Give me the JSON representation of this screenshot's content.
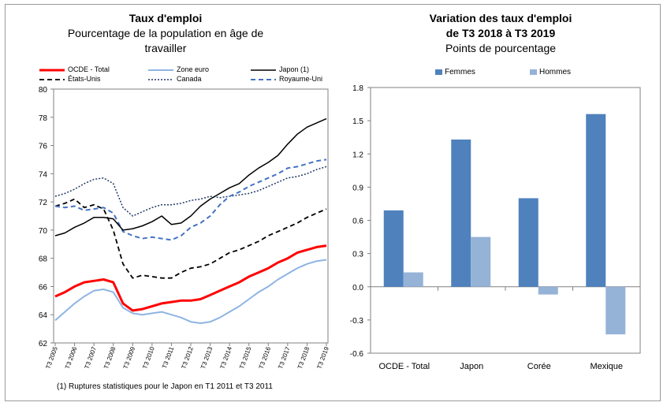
{
  "left_chart": {
    "title": "Taux d'emploi",
    "subtitle_line1": "Pourcentage de la population en âge de",
    "subtitle_line2": "travailler",
    "footnote": "(1) Ruptures statistiques pour le Japon en T1 2011  et T3 2011",
    "legend": [
      {
        "label": "OCDE - Total",
        "color": "#ff0000",
        "style": "solid-thick"
      },
      {
        "label": "Zone euro",
        "color": "#8eb4e3",
        "style": "solid"
      },
      {
        "label": "Japon (1)",
        "color": "#000000",
        "style": "solid"
      },
      {
        "label": "États-Unis",
        "color": "#000000",
        "style": "dashed"
      },
      {
        "label": "Canada",
        "color": "#1f3864",
        "style": "dotted"
      },
      {
        "label": "Royaume-Uni",
        "color": "#4472c4",
        "style": "dashed"
      }
    ]
  },
  "right_chart": {
    "title_line1": "Variation des taux d'emploi",
    "title_line2": "de T3 2018 à T3 2019",
    "subtitle": "Points de pourcentage",
    "legend": [
      {
        "label": "Femmes",
        "color": "#4f81bd"
      },
      {
        "label": "Hommes",
        "color": "#95b3d7"
      }
    ]
  },
  "chart_data": [
    {
      "type": "line",
      "title": "Taux d'emploi",
      "ylim": [
        62,
        80
      ],
      "yticks": [
        "62",
        "64",
        "66",
        "68",
        "70",
        "72",
        "74",
        "76",
        "78",
        "80"
      ],
      "xticks": [
        "T3 2005",
        "T3 2006",
        "T3 2007",
        "T3 2008",
        "T3 2009",
        "T3 2010",
        "T3 2011",
        "T3 2012",
        "T3 2013",
        "T3 2014",
        "T3 2015",
        "T3 2016",
        "T3 2017",
        "T3 2018",
        "T3 2019"
      ],
      "grid": false,
      "x": [
        "T3 2005",
        "T1 2006",
        "T3 2006",
        "T1 2007",
        "T3 2007",
        "T1 2008",
        "T3 2008",
        "T1 2009",
        "T3 2009",
        "T1 2010",
        "T3 2010",
        "T1 2011",
        "T3 2011",
        "T1 2012",
        "T3 2012",
        "T1 2013",
        "T3 2013",
        "T1 2014",
        "T3 2014",
        "T1 2015",
        "T3 2015",
        "T1 2016",
        "T3 2016",
        "T1 2017",
        "T3 2017",
        "T1 2018",
        "T3 2018",
        "T1 2019",
        "T3 2019"
      ],
      "series": [
        {
          "name": "OCDE - Total",
          "color": "#ff0000",
          "values": [
            65.3,
            65.6,
            66.0,
            66.3,
            66.4,
            66.5,
            66.3,
            64.8,
            64.3,
            64.4,
            64.6,
            64.8,
            64.9,
            65.0,
            65.0,
            65.1,
            65.4,
            65.7,
            66.0,
            66.3,
            66.7,
            67.0,
            67.3,
            67.7,
            68.0,
            68.4,
            68.6,
            68.8,
            68.9
          ]
        },
        {
          "name": "Zone euro",
          "color": "#8eb4e3",
          "values": [
            63.6,
            64.2,
            64.8,
            65.3,
            65.7,
            65.8,
            65.6,
            64.5,
            64.1,
            64.0,
            64.1,
            64.2,
            64.0,
            63.8,
            63.5,
            63.4,
            63.5,
            63.8,
            64.2,
            64.6,
            65.1,
            65.6,
            66.0,
            66.5,
            66.9,
            67.3,
            67.6,
            67.8,
            67.9
          ]
        },
        {
          "name": "Japon (1)",
          "color": "#000000",
          "values": [
            69.6,
            69.8,
            70.2,
            70.5,
            70.9,
            70.9,
            70.8,
            70.0,
            70.1,
            70.3,
            70.6,
            71.0,
            70.4,
            70.5,
            71.0,
            71.7,
            72.2,
            72.6,
            73.0,
            73.3,
            73.9,
            74.4,
            74.8,
            75.3,
            76.1,
            76.8,
            77.3,
            77.6,
            77.9
          ]
        },
        {
          "name": "États-Unis",
          "color": "#000000",
          "values": [
            71.7,
            71.9,
            72.2,
            71.6,
            71.8,
            71.5,
            70.0,
            67.6,
            66.6,
            66.8,
            66.7,
            66.6,
            66.6,
            67.0,
            67.3,
            67.4,
            67.6,
            68.0,
            68.4,
            68.6,
            68.9,
            69.2,
            69.6,
            69.9,
            70.2,
            70.5,
            70.9,
            71.2,
            71.5
          ]
        },
        {
          "name": "Canada",
          "color": "#1f3864",
          "values": [
            72.4,
            72.6,
            72.9,
            73.3,
            73.6,
            73.7,
            73.3,
            71.6,
            71.0,
            71.3,
            71.6,
            71.8,
            71.8,
            71.9,
            72.1,
            72.2,
            72.4,
            72.3,
            72.4,
            72.5,
            72.6,
            72.8,
            73.1,
            73.4,
            73.7,
            73.8,
            74.0,
            74.3,
            74.5
          ]
        },
        {
          "name": "Royaume-Uni",
          "color": "#4472c4",
          "values": [
            71.7,
            71.6,
            71.7,
            71.4,
            71.5,
            71.6,
            71.2,
            69.9,
            69.6,
            69.4,
            69.5,
            69.4,
            69.3,
            69.6,
            70.2,
            70.5,
            71.0,
            71.8,
            72.4,
            72.7,
            73.1,
            73.4,
            73.7,
            74.0,
            74.4,
            74.5,
            74.7,
            74.9,
            75.0
          ]
        }
      ]
    },
    {
      "type": "bar",
      "title": "Variation des taux d'emploi de T3 2018 à T3 2019",
      "subtitle": "Points de pourcentage",
      "categories": [
        "OCDE - Total",
        "Japon",
        "Corée",
        "Mexique"
      ],
      "ylim": [
        -0.6,
        1.8
      ],
      "yticks": [
        "-0.6",
        "-0.3",
        "0.0",
        "0.3",
        "0.6",
        "0.9",
        "1.2",
        "1.5",
        "1.8"
      ],
      "grid": false,
      "series": [
        {
          "name": "Femmes",
          "color": "#4f81bd",
          "values": [
            0.69,
            1.33,
            0.8,
            1.56
          ]
        },
        {
          "name": "Hommes",
          "color": "#95b3d7",
          "values": [
            0.13,
            0.45,
            -0.07,
            -0.43
          ]
        }
      ]
    }
  ]
}
